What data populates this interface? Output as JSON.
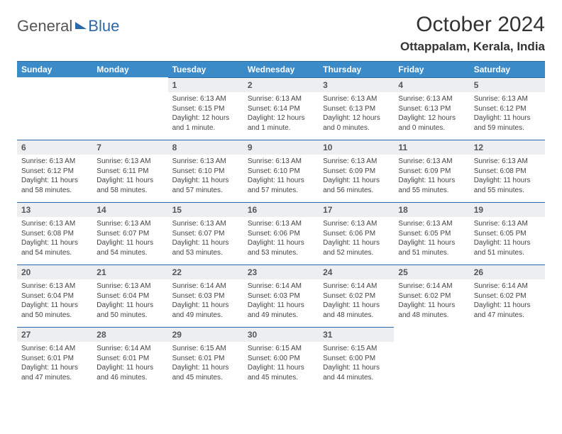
{
  "logo": {
    "part1": "General",
    "part2": "Blue"
  },
  "title": "October 2024",
  "location": "Ottappalam, Kerala, India",
  "colors": {
    "header_bg": "#3b8bc8",
    "rule": "#2b6aa8",
    "daynum_bg": "#eceef0",
    "text": "#333333",
    "body_text": "#444444"
  },
  "day_headers": [
    "Sunday",
    "Monday",
    "Tuesday",
    "Wednesday",
    "Thursday",
    "Friday",
    "Saturday"
  ],
  "weeks": [
    [
      {
        "n": "",
        "sr": "",
        "ss": "",
        "dl": "",
        "empty": true
      },
      {
        "n": "",
        "sr": "",
        "ss": "",
        "dl": "",
        "empty": true
      },
      {
        "n": "1",
        "sr": "Sunrise: 6:13 AM",
        "ss": "Sunset: 6:15 PM",
        "dl": "Daylight: 12 hours and 1 minute."
      },
      {
        "n": "2",
        "sr": "Sunrise: 6:13 AM",
        "ss": "Sunset: 6:14 PM",
        "dl": "Daylight: 12 hours and 1 minute."
      },
      {
        "n": "3",
        "sr": "Sunrise: 6:13 AM",
        "ss": "Sunset: 6:13 PM",
        "dl": "Daylight: 12 hours and 0 minutes."
      },
      {
        "n": "4",
        "sr": "Sunrise: 6:13 AM",
        "ss": "Sunset: 6:13 PM",
        "dl": "Daylight: 12 hours and 0 minutes."
      },
      {
        "n": "5",
        "sr": "Sunrise: 6:13 AM",
        "ss": "Sunset: 6:12 PM",
        "dl": "Daylight: 11 hours and 59 minutes."
      }
    ],
    [
      {
        "n": "6",
        "sr": "Sunrise: 6:13 AM",
        "ss": "Sunset: 6:12 PM",
        "dl": "Daylight: 11 hours and 58 minutes."
      },
      {
        "n": "7",
        "sr": "Sunrise: 6:13 AM",
        "ss": "Sunset: 6:11 PM",
        "dl": "Daylight: 11 hours and 58 minutes."
      },
      {
        "n": "8",
        "sr": "Sunrise: 6:13 AM",
        "ss": "Sunset: 6:10 PM",
        "dl": "Daylight: 11 hours and 57 minutes."
      },
      {
        "n": "9",
        "sr": "Sunrise: 6:13 AM",
        "ss": "Sunset: 6:10 PM",
        "dl": "Daylight: 11 hours and 57 minutes."
      },
      {
        "n": "10",
        "sr": "Sunrise: 6:13 AM",
        "ss": "Sunset: 6:09 PM",
        "dl": "Daylight: 11 hours and 56 minutes."
      },
      {
        "n": "11",
        "sr": "Sunrise: 6:13 AM",
        "ss": "Sunset: 6:09 PM",
        "dl": "Daylight: 11 hours and 55 minutes."
      },
      {
        "n": "12",
        "sr": "Sunrise: 6:13 AM",
        "ss": "Sunset: 6:08 PM",
        "dl": "Daylight: 11 hours and 55 minutes."
      }
    ],
    [
      {
        "n": "13",
        "sr": "Sunrise: 6:13 AM",
        "ss": "Sunset: 6:08 PM",
        "dl": "Daylight: 11 hours and 54 minutes."
      },
      {
        "n": "14",
        "sr": "Sunrise: 6:13 AM",
        "ss": "Sunset: 6:07 PM",
        "dl": "Daylight: 11 hours and 54 minutes."
      },
      {
        "n": "15",
        "sr": "Sunrise: 6:13 AM",
        "ss": "Sunset: 6:07 PM",
        "dl": "Daylight: 11 hours and 53 minutes."
      },
      {
        "n": "16",
        "sr": "Sunrise: 6:13 AM",
        "ss": "Sunset: 6:06 PM",
        "dl": "Daylight: 11 hours and 53 minutes."
      },
      {
        "n": "17",
        "sr": "Sunrise: 6:13 AM",
        "ss": "Sunset: 6:06 PM",
        "dl": "Daylight: 11 hours and 52 minutes."
      },
      {
        "n": "18",
        "sr": "Sunrise: 6:13 AM",
        "ss": "Sunset: 6:05 PM",
        "dl": "Daylight: 11 hours and 51 minutes."
      },
      {
        "n": "19",
        "sr": "Sunrise: 6:13 AM",
        "ss": "Sunset: 6:05 PM",
        "dl": "Daylight: 11 hours and 51 minutes."
      }
    ],
    [
      {
        "n": "20",
        "sr": "Sunrise: 6:13 AM",
        "ss": "Sunset: 6:04 PM",
        "dl": "Daylight: 11 hours and 50 minutes."
      },
      {
        "n": "21",
        "sr": "Sunrise: 6:13 AM",
        "ss": "Sunset: 6:04 PM",
        "dl": "Daylight: 11 hours and 50 minutes."
      },
      {
        "n": "22",
        "sr": "Sunrise: 6:14 AM",
        "ss": "Sunset: 6:03 PM",
        "dl": "Daylight: 11 hours and 49 minutes."
      },
      {
        "n": "23",
        "sr": "Sunrise: 6:14 AM",
        "ss": "Sunset: 6:03 PM",
        "dl": "Daylight: 11 hours and 49 minutes."
      },
      {
        "n": "24",
        "sr": "Sunrise: 6:14 AM",
        "ss": "Sunset: 6:02 PM",
        "dl": "Daylight: 11 hours and 48 minutes."
      },
      {
        "n": "25",
        "sr": "Sunrise: 6:14 AM",
        "ss": "Sunset: 6:02 PM",
        "dl": "Daylight: 11 hours and 48 minutes."
      },
      {
        "n": "26",
        "sr": "Sunrise: 6:14 AM",
        "ss": "Sunset: 6:02 PM",
        "dl": "Daylight: 11 hours and 47 minutes."
      }
    ],
    [
      {
        "n": "27",
        "sr": "Sunrise: 6:14 AM",
        "ss": "Sunset: 6:01 PM",
        "dl": "Daylight: 11 hours and 47 minutes."
      },
      {
        "n": "28",
        "sr": "Sunrise: 6:14 AM",
        "ss": "Sunset: 6:01 PM",
        "dl": "Daylight: 11 hours and 46 minutes."
      },
      {
        "n": "29",
        "sr": "Sunrise: 6:15 AM",
        "ss": "Sunset: 6:01 PM",
        "dl": "Daylight: 11 hours and 45 minutes."
      },
      {
        "n": "30",
        "sr": "Sunrise: 6:15 AM",
        "ss": "Sunset: 6:00 PM",
        "dl": "Daylight: 11 hours and 45 minutes."
      },
      {
        "n": "31",
        "sr": "Sunrise: 6:15 AM",
        "ss": "Sunset: 6:00 PM",
        "dl": "Daylight: 11 hours and 44 minutes."
      },
      {
        "n": "",
        "sr": "",
        "ss": "",
        "dl": "",
        "empty": true
      },
      {
        "n": "",
        "sr": "",
        "ss": "",
        "dl": "",
        "empty": true
      }
    ]
  ]
}
